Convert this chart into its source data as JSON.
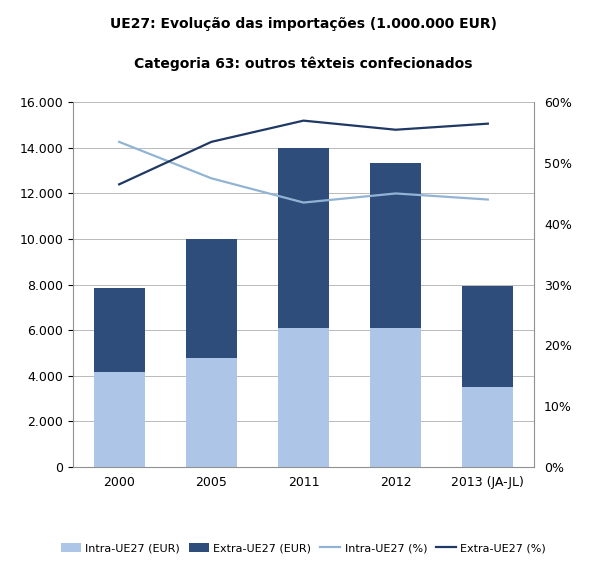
{
  "title_line1": "UE27: Evolução das importações (1.000.000 EUR)",
  "title_line2": "Categoria 63: outros têxteis confecionados",
  "categories": [
    "2000",
    "2005",
    "2011",
    "2012",
    "2013 (JA-JL)"
  ],
  "intra_eur": [
    4150,
    4750,
    6100,
    6100,
    3500
  ],
  "extra_eur": [
    3700,
    5250,
    7900,
    7250,
    4450
  ],
  "intra_pct": [
    53.5,
    47.5,
    43.5,
    45.0,
    44.0
  ],
  "extra_pct": [
    46.5,
    53.5,
    57.0,
    55.5,
    56.5
  ],
  "intra_eur_color": "#adc6e8",
  "extra_eur_color": "#2e4d7b",
  "intra_pct_color": "#92b4d4",
  "extra_pct_color": "#1f3864",
  "ylim_left": [
    0,
    16000
  ],
  "ylim_right": [
    0,
    60
  ],
  "yticks_left": [
    0,
    2000,
    4000,
    6000,
    8000,
    10000,
    12000,
    14000,
    16000
  ],
  "yticks_right": [
    0,
    10,
    20,
    30,
    40,
    50,
    60
  ],
  "bar_width": 0.55,
  "legend_labels": [
    "Intra-UE27 (EUR)",
    "Extra-UE27 (EUR)",
    "Intra-UE27 (%)",
    "Extra-UE27 (%)"
  ],
  "figsize": [
    6.07,
    5.69
  ],
  "dpi": 100,
  "background_color": "#ffffff",
  "grid_color": "#b0b0b0"
}
